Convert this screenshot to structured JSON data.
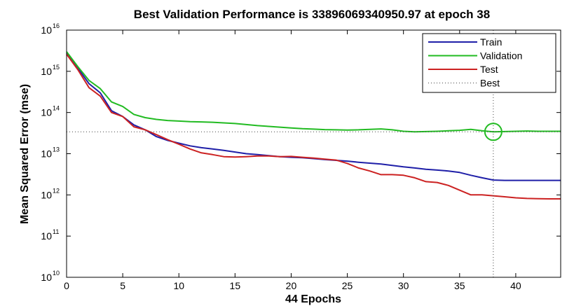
{
  "chart_data": {
    "type": "line",
    "title": "Best Validation Performance is 33896069340950.97 at epoch 38",
    "xlabel": "44 Epochs",
    "ylabel": "Mean Squared Error  (mse)",
    "xlim": [
      0,
      44
    ],
    "ylim": [
      10000000000.0,
      1e+16
    ],
    "yscale": "log",
    "x_ticks": [
      0,
      5,
      10,
      15,
      20,
      25,
      30,
      35,
      40
    ],
    "y_tick_exponents": [
      10,
      11,
      12,
      13,
      14,
      15,
      16
    ],
    "grid": false,
    "legend_position": "top-right",
    "best_epoch": 38,
    "best_value": 33896069340950.97,
    "best_label": "Best",
    "series": [
      {
        "name": "Train",
        "color": "#1f1fa8",
        "x": [
          0,
          1,
          2,
          3,
          4,
          5,
          6,
          7,
          8,
          9,
          10,
          11,
          12,
          13,
          14,
          15,
          16,
          17,
          18,
          19,
          20,
          21,
          22,
          23,
          24,
          25,
          26,
          27,
          28,
          29,
          30,
          31,
          32,
          33,
          34,
          35,
          36,
          37,
          38,
          39,
          40,
          41,
          42,
          43,
          44
        ],
        "y": [
          2800000000000000.0,
          1200000000000000.0,
          500000000000000.0,
          300000000000000.0,
          110000000000000.0,
          80000000000000.0,
          50000000000000.0,
          38000000000000.0,
          26000000000000.0,
          21000000000000.0,
          18000000000000.0,
          15500000000000.0,
          14000000000000.0,
          13000000000000.0,
          12000000000000.0,
          11000000000000.0,
          10000000000000.0,
          9500000000000.0,
          9000000000000.0,
          8500000000000.0,
          8200000000000.0,
          8000000000000.0,
          7600000000000.0,
          7200000000000.0,
          6900000000000.0,
          6600000000000.0,
          6200000000000.0,
          5900000000000.0,
          5600000000000.0,
          5200000000000.0,
          4800000000000.0,
          4500000000000.0,
          4200000000000.0,
          4000000000000.0,
          3800000000000.0,
          3500000000000.0,
          3000000000000.0,
          2600000000000.0,
          2300000000000.0,
          2250000000000.0,
          2250000000000.0,
          2250000000000.0,
          2250000000000.0,
          2250000000000.0,
          2250000000000.0
        ]
      },
      {
        "name": "Validation",
        "color": "#22bb22",
        "x": [
          0,
          1,
          2,
          3,
          4,
          5,
          6,
          7,
          8,
          9,
          10,
          11,
          12,
          13,
          14,
          15,
          16,
          17,
          18,
          19,
          20,
          21,
          22,
          23,
          24,
          25,
          26,
          27,
          28,
          29,
          30,
          31,
          32,
          33,
          34,
          35,
          36,
          37,
          38,
          39,
          40,
          41,
          42,
          43,
          44
        ],
        "y": [
          3000000000000000.0,
          1300000000000000.0,
          600000000000000.0,
          380000000000000.0,
          180000000000000.0,
          140000000000000.0,
          90000000000000.0,
          75000000000000.0,
          68000000000000.0,
          64000000000000.0,
          62000000000000.0,
          60000000000000.0,
          59000000000000.0,
          58000000000000.0,
          56000000000000.0,
          54000000000000.0,
          51000000000000.0,
          48000000000000.0,
          46000000000000.0,
          44000000000000.0,
          42000000000000.0,
          40500000000000.0,
          39500000000000.0,
          38500000000000.0,
          38000000000000.0,
          37500000000000.0,
          38000000000000.0,
          39000000000000.0,
          40000000000000.0,
          38000000000000.0,
          35000000000000.0,
          34000000000000.0,
          34500000000000.0,
          35000000000000.0,
          36000000000000.0,
          37000000000000.0,
          39000000000000.0,
          36000000000000.0,
          33900000000000.0,
          34500000000000.0,
          35000000000000.0,
          35500000000000.0,
          35000000000000.0,
          35000000000000.0,
          35000000000000.0
        ]
      },
      {
        "name": "Test",
        "color": "#cc2222",
        "x": [
          0,
          1,
          2,
          3,
          4,
          5,
          6,
          7,
          8,
          9,
          10,
          11,
          12,
          13,
          14,
          15,
          16,
          17,
          18,
          19,
          20,
          21,
          22,
          23,
          24,
          25,
          26,
          27,
          28,
          29,
          30,
          31,
          32,
          33,
          34,
          35,
          36,
          37,
          38,
          39,
          40,
          41,
          42,
          43,
          44
        ],
        "y": [
          2600000000000000.0,
          1100000000000000.0,
          400000000000000.0,
          250000000000000.0,
          100000000000000.0,
          80000000000000.0,
          45000000000000.0,
          38000000000000.0,
          29000000000000.0,
          22000000000000.0,
          17000000000000.0,
          13000000000000.0,
          10500000000000.0,
          9500000000000.0,
          8500000000000.0,
          8300000000000.0,
          8500000000000.0,
          8800000000000.0,
          8800000000000.0,
          8500000000000.0,
          8600000000000.0,
          8200000000000.0,
          7800000000000.0,
          7400000000000.0,
          7000000000000.0,
          5800000000000.0,
          4500000000000.0,
          3800000000000.0,
          3100000000000.0,
          3100000000000.0,
          3000000000000.0,
          2600000000000.0,
          2100000000000.0,
          2000000000000.0,
          1700000000000.0,
          1300000000000.0,
          1000000000000.0,
          1000000000000.0,
          950000000000.0,
          900000000000.0,
          850000000000.0,
          820000000000.0,
          810000000000.0,
          800000000000.0,
          800000000000.0
        ]
      }
    ]
  }
}
